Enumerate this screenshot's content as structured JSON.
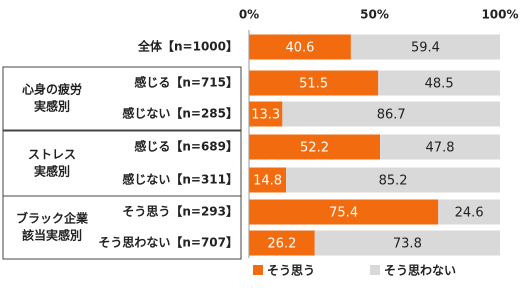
{
  "chart_data": {
    "type": "bar",
    "orientation": "horizontal",
    "stacked": true,
    "categories": [
      "全体【n=1000】",
      "感じる【n=715】",
      "感じない【n=285】",
      "感じる【n=689】",
      "感じない【n=311】",
      "そう思う【n=293】",
      "そう思わない【n=707】"
    ],
    "groups": [
      [
        "心身の疲労",
        "実感別"
      ],
      [
        "ストレス",
        "実感別"
      ],
      [
        "ブラック企業",
        "該当実感別"
      ]
    ],
    "series": [
      {
        "name": "そう思う",
        "color": "#f26b0f",
        "values": [
          40.6,
          51.5,
          13.3,
          52.2,
          14.8,
          75.4,
          26.2
        ]
      },
      {
        "name": "そう思わない",
        "color": "#d9d9d9",
        "values": [
          59.4,
          48.5,
          86.7,
          47.8,
          85.2,
          24.6,
          73.8
        ]
      }
    ],
    "xlim": [
      0,
      100
    ],
    "xticks": [
      {
        "value": 0,
        "label": "0%"
      },
      {
        "value": 50,
        "label": "50%"
      },
      {
        "value": 100,
        "label": "100%"
      }
    ],
    "legend": "bottom"
  }
}
